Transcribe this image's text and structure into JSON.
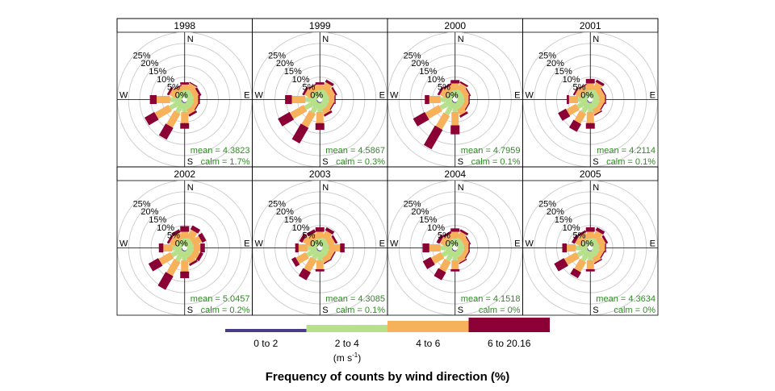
{
  "chart_data": {
    "type": "windrose",
    "title": "Frequency of counts by wind direction (%)",
    "directions_deg": [
      0,
      30,
      60,
      90,
      120,
      150,
      180,
      210,
      240,
      270,
      300,
      330
    ],
    "compass_labels": [
      "N",
      "E",
      "S",
      "W"
    ],
    "ring_labels": [
      "0%",
      "5%",
      "10%",
      "15%",
      "20%",
      "25%"
    ],
    "ring_values": [
      0,
      5,
      10,
      15,
      20,
      25,
      30
    ],
    "max_percent": 32,
    "speed_bins": [
      {
        "label": "0 to 2",
        "color": "#4b3c89"
      },
      {
        "label": "2 to 4",
        "color": "#b7e08b"
      },
      {
        "label": "4 to 6",
        "color": "#f7b15a"
      },
      {
        "label": "6 to 20.16",
        "color": "#8b0035"
      }
    ],
    "units": {
      "prefix": "(m s",
      "exponent": "-1",
      "suffix": ")"
    },
    "panels": [
      {
        "year": "1998",
        "mean_label": "mean = 4.3823",
        "calm_label": "calm = 1.7%",
        "values": [
          [
            1.2,
            3,
            2.5,
            1
          ],
          [
            1,
            3.5,
            3,
            0.5
          ],
          [
            1,
            3,
            2.5,
            1
          ],
          [
            1,
            3,
            2,
            0.8
          ],
          [
            1,
            3,
            2,
            0.5
          ],
          [
            1.2,
            3,
            2.5,
            1
          ],
          [
            1.5,
            4,
            5,
            2.5
          ],
          [
            1.5,
            5,
            7,
            6
          ],
          [
            1.5,
            6,
            7,
            5
          ],
          [
            1.5,
            5,
            6,
            3
          ],
          [
            1,
            3,
            3,
            1
          ],
          [
            1,
            3,
            2,
            0.5
          ]
        ]
      },
      {
        "year": "1999",
        "mean_label": "mean = 4.5867",
        "calm_label": "calm = 0.3%",
        "values": [
          [
            1.2,
            3,
            2.5,
            1
          ],
          [
            1,
            3.5,
            3.5,
            1.2
          ],
          [
            1,
            3,
            3,
            0.8
          ],
          [
            1,
            3,
            2.5,
            0.5
          ],
          [
            1,
            3,
            2,
            0.5
          ],
          [
            1.2,
            3,
            2.5,
            1
          ],
          [
            1.5,
            4,
            5,
            3
          ],
          [
            1.5,
            5,
            7,
            8
          ],
          [
            1.5,
            6,
            7,
            6
          ],
          [
            1.5,
            5,
            6,
            3
          ],
          [
            1,
            3,
            3,
            1
          ],
          [
            1,
            3,
            2.5,
            0.5
          ]
        ]
      },
      {
        "year": "2000",
        "mean_label": "mean = 4.7959",
        "calm_label": "calm = 0.1%",
        "values": [
          [
            1.2,
            3,
            3,
            1.5
          ],
          [
            1,
            3.5,
            3,
            0.8
          ],
          [
            1,
            3,
            2.5,
            0.5
          ],
          [
            1,
            3,
            2,
            0.5
          ],
          [
            1,
            3,
            2,
            0.5
          ],
          [
            1.2,
            3,
            3,
            1
          ],
          [
            1.5,
            4,
            6,
            4
          ],
          [
            1.5,
            6,
            7,
            10
          ],
          [
            1.5,
            6,
            7,
            6
          ],
          [
            1.5,
            5,
            5,
            2
          ],
          [
            1,
            3,
            3,
            1
          ],
          [
            1,
            3,
            2.5,
            0.8
          ]
        ]
      },
      {
        "year": "2001",
        "mean_label": "mean = 4.2114",
        "calm_label": "calm = 0.1%",
        "values": [
          [
            1.2,
            3,
            3,
            2
          ],
          [
            1,
            3.5,
            3.5,
            1.2
          ],
          [
            1,
            3,
            2.5,
            0.5
          ],
          [
            1,
            3,
            2.5,
            0.5
          ],
          [
            1,
            3,
            2,
            0.5
          ],
          [
            1.2,
            3,
            2.5,
            0.5
          ],
          [
            1.5,
            4,
            5,
            2.5
          ],
          [
            1.5,
            5,
            5,
            4
          ],
          [
            1.5,
            5,
            5,
            4
          ],
          [
            1.5,
            4,
            4,
            1
          ],
          [
            1,
            3,
            3,
            0.8
          ],
          [
            1,
            3,
            2.5,
            0.5
          ]
        ]
      },
      {
        "year": "2002",
        "mean_label": "mean = 5.0457",
        "calm_label": "calm = 0.2%",
        "values": [
          [
            1.2,
            3,
            3,
            2.5
          ],
          [
            1,
            3.5,
            4,
            2
          ],
          [
            1,
            3,
            4,
            2
          ],
          [
            1,
            3,
            3,
            2
          ],
          [
            1,
            3,
            3,
            1.5
          ],
          [
            1.2,
            3,
            3,
            1
          ],
          [
            1.5,
            4,
            5,
            3
          ],
          [
            1.5,
            5,
            7,
            7
          ],
          [
            1.5,
            5,
            6,
            5
          ],
          [
            1.5,
            4,
            4,
            2
          ],
          [
            1,
            3,
            3,
            1
          ],
          [
            1,
            3,
            3,
            1.5
          ]
        ]
      },
      {
        "year": "2003",
        "mean_label": "mean = 4.3085",
        "calm_label": "calm = 0.1%",
        "values": [
          [
            1.2,
            3,
            3,
            2
          ],
          [
            1,
            3.5,
            3.5,
            1.5
          ],
          [
            1,
            3,
            3,
            1
          ],
          [
            1,
            3,
            5,
            2
          ],
          [
            1,
            3,
            2.5,
            0.5
          ],
          [
            1.2,
            3,
            2.5,
            0.5
          ],
          [
            1.5,
            4,
            4,
            1
          ],
          [
            1.5,
            4,
            6,
            4
          ],
          [
            1.5,
            5,
            5,
            2
          ],
          [
            1.5,
            4,
            4,
            1.5
          ],
          [
            1,
            3,
            4,
            1.5
          ],
          [
            1,
            3,
            3,
            1.5
          ]
        ]
      },
      {
        "year": "2004",
        "mean_label": "mean = 4.1518",
        "calm_label": "calm = 0%",
        "values": [
          [
            1.2,
            3,
            3,
            1.5
          ],
          [
            1,
            3.5,
            3,
            1
          ],
          [
            1,
            3,
            2.5,
            0.5
          ],
          [
            1,
            3,
            2,
            0.5
          ],
          [
            1,
            3,
            2,
            0.5
          ],
          [
            1.2,
            3,
            2.5,
            0.5
          ],
          [
            1.5,
            4,
            4,
            1
          ],
          [
            1.5,
            5,
            5,
            4
          ],
          [
            1.5,
            5,
            5,
            4
          ],
          [
            1.5,
            5,
            5,
            3
          ],
          [
            1,
            3,
            3,
            1.5
          ],
          [
            1,
            3,
            2.5,
            1
          ]
        ]
      },
      {
        "year": "2005",
        "mean_label": "mean = 4.3634",
        "calm_label": "calm = 0%",
        "values": [
          [
            1.2,
            3,
            3,
            2
          ],
          [
            1,
            3.5,
            3.5,
            1.5
          ],
          [
            1,
            3,
            3,
            1
          ],
          [
            1,
            3,
            2.5,
            0.5
          ],
          [
            1,
            3,
            2,
            0.5
          ],
          [
            1.2,
            3,
            2.5,
            0.5
          ],
          [
            1.5,
            4,
            4,
            1
          ],
          [
            1.5,
            5,
            5,
            3
          ],
          [
            1.5,
            5,
            6,
            5
          ],
          [
            1.5,
            5,
            4,
            2
          ],
          [
            1,
            3,
            3,
            1.5
          ],
          [
            1,
            3,
            3,
            1
          ]
        ]
      }
    ]
  }
}
